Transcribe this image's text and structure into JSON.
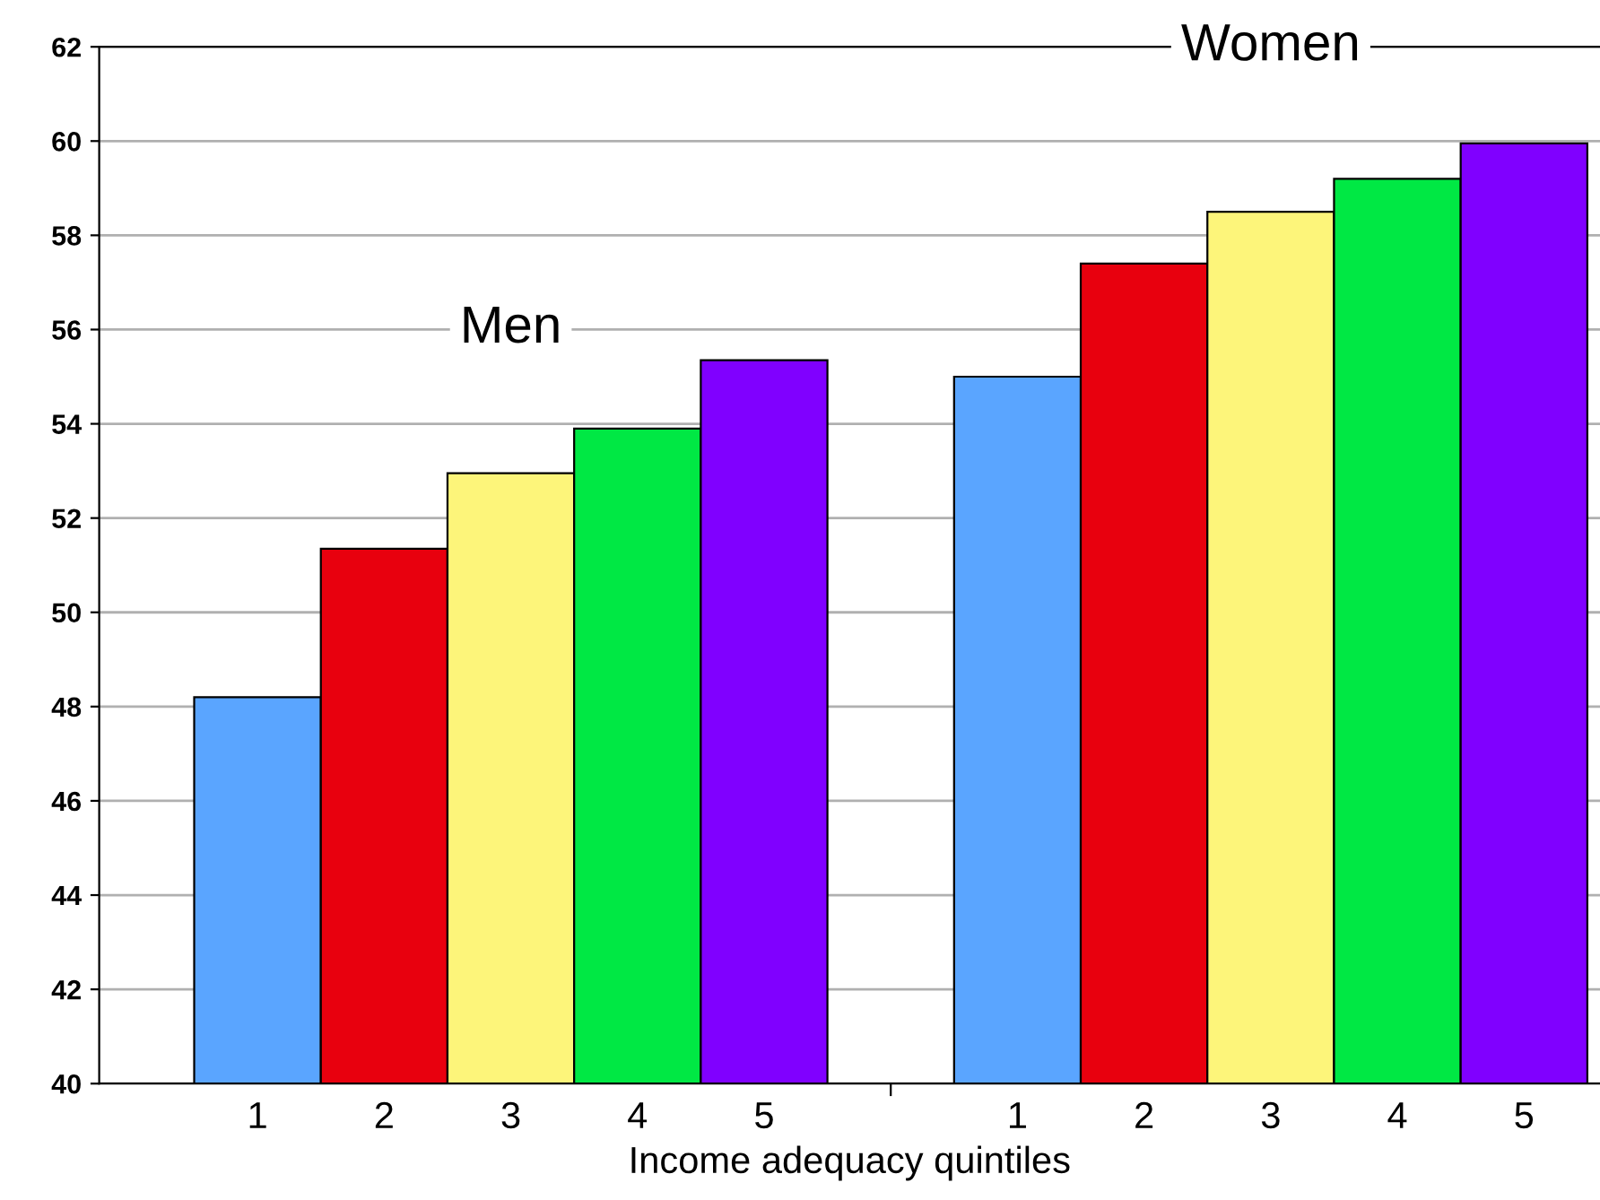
{
  "chart_data": {
    "type": "bar",
    "xlabel": "Income adequacy quintiles",
    "categories": [
      "1",
      "2",
      "3",
      "4",
      "5",
      null,
      "1",
      "2",
      "3",
      "4",
      "5"
    ],
    "values": [
      48.2,
      51.35,
      52.95,
      53.9,
      55.35,
      null,
      55.0,
      57.4,
      58.5,
      59.2,
      59.95
    ],
    "colors": [
      "#5aa5ff",
      "#e8000e",
      "#fdf57a",
      "#00e844",
      "#8000ff",
      null,
      "#5aa5ff",
      "#e8000e",
      "#fdf57a",
      "#00e844",
      "#8000ff"
    ],
    "ylim": [
      40,
      62
    ],
    "yticks": [
      40,
      42,
      44,
      46,
      48,
      50,
      52,
      54,
      56,
      58,
      60,
      62
    ],
    "grid": "y",
    "annotations": [
      "Men",
      "Women"
    ]
  }
}
